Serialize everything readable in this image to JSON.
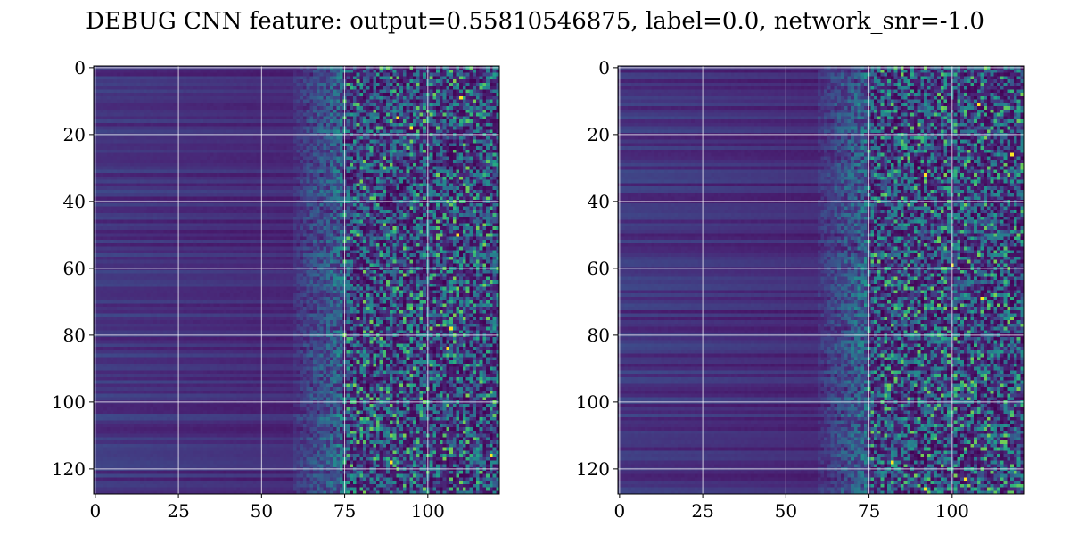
{
  "title": "DEBUG CNN feature: output=0.55810546875, label=0.0, network_snr=-1.0",
  "chart_data": [
    {
      "type": "heatmap",
      "title": "",
      "xlabel": "",
      "ylabel": "",
      "colormap": "viridis",
      "rows": 128,
      "cols": 122,
      "xlim": [
        -0.5,
        121.5
      ],
      "ylim": [
        127.5,
        -0.5
      ],
      "xticks": [
        0,
        25,
        50,
        75,
        100
      ],
      "yticks": [
        0,
        20,
        40,
        60,
        80,
        100,
        120
      ],
      "grid": true,
      "value_range": [
        0,
        1
      ],
      "description_of_pattern": null,
      "band_mean": {
        "x_0_60": 0.12,
        "x_60_75": 0.22,
        "x_75_121": 0.3
      },
      "hotspots": [
        [
          95,
          18
        ],
        [
          91,
          15
        ],
        [
          89,
          118
        ],
        [
          110,
          9
        ],
        [
          107,
          78
        ],
        [
          106,
          84
        ],
        [
          109,
          50
        ],
        [
          119,
          116
        ]
      ]
    },
    {
      "type": "heatmap",
      "title": "",
      "xlabel": "",
      "ylabel": "",
      "colormap": "viridis",
      "rows": 128,
      "cols": 122,
      "xlim": [
        -0.5,
        121.5
      ],
      "ylim": [
        127.5,
        -0.5
      ],
      "xticks": [
        0,
        25,
        50,
        75,
        100
      ],
      "yticks": [
        0,
        20,
        40,
        60,
        80,
        100,
        120
      ],
      "grid": true,
      "value_range": [
        0,
        1
      ],
      "description_of_pattern": null,
      "band_mean": {
        "x_0_60": 0.11,
        "x_60_75": 0.18,
        "x_75_121": 0.27
      },
      "hotspots": [
        [
          100,
          59
        ],
        [
          92,
          32
        ],
        [
          109,
          69
        ],
        [
          82,
          118
        ],
        [
          104,
          123
        ],
        [
          92,
          126
        ],
        [
          108,
          11
        ],
        [
          118,
          26
        ]
      ]
    }
  ],
  "colors": {
    "viridis": [
      "#440154",
      "#482878",
      "#3e4989",
      "#31688e",
      "#26828e",
      "#1f9e89",
      "#35b779",
      "#6ece58",
      "#b5de2b",
      "#fde725"
    ],
    "grid": "#ffffff",
    "axis": "#000000"
  }
}
